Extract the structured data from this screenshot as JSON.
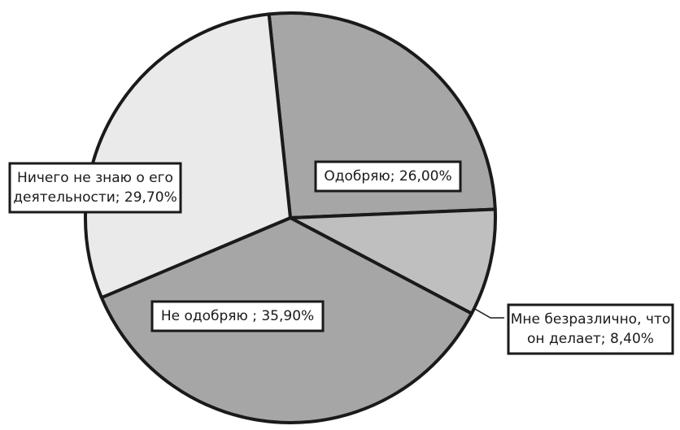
{
  "chart_data": {
    "type": "pie",
    "title": "",
    "start_angle_deg": -6,
    "direction": "clockwise",
    "slices": [
      {
        "label_lines": [
          "Одобряю; 26,00%"
        ],
        "value": 26.0,
        "color": "#a6a6a6"
      },
      {
        "label_lines": [
          "Мне безразлично, что",
          "он делает; 8,40%"
        ],
        "value": 8.4,
        "color": "#bfbfbf"
      },
      {
        "label_lines": [
          "Не одобряю ; 35,90%"
        ],
        "value": 35.9,
        "color": "#a6a6a6"
      },
      {
        "label_lines": [
          "Ничего не знаю о его",
          "деятельности; 29,70%"
        ],
        "value": 29.7,
        "color": "#eaeaea"
      }
    ]
  }
}
